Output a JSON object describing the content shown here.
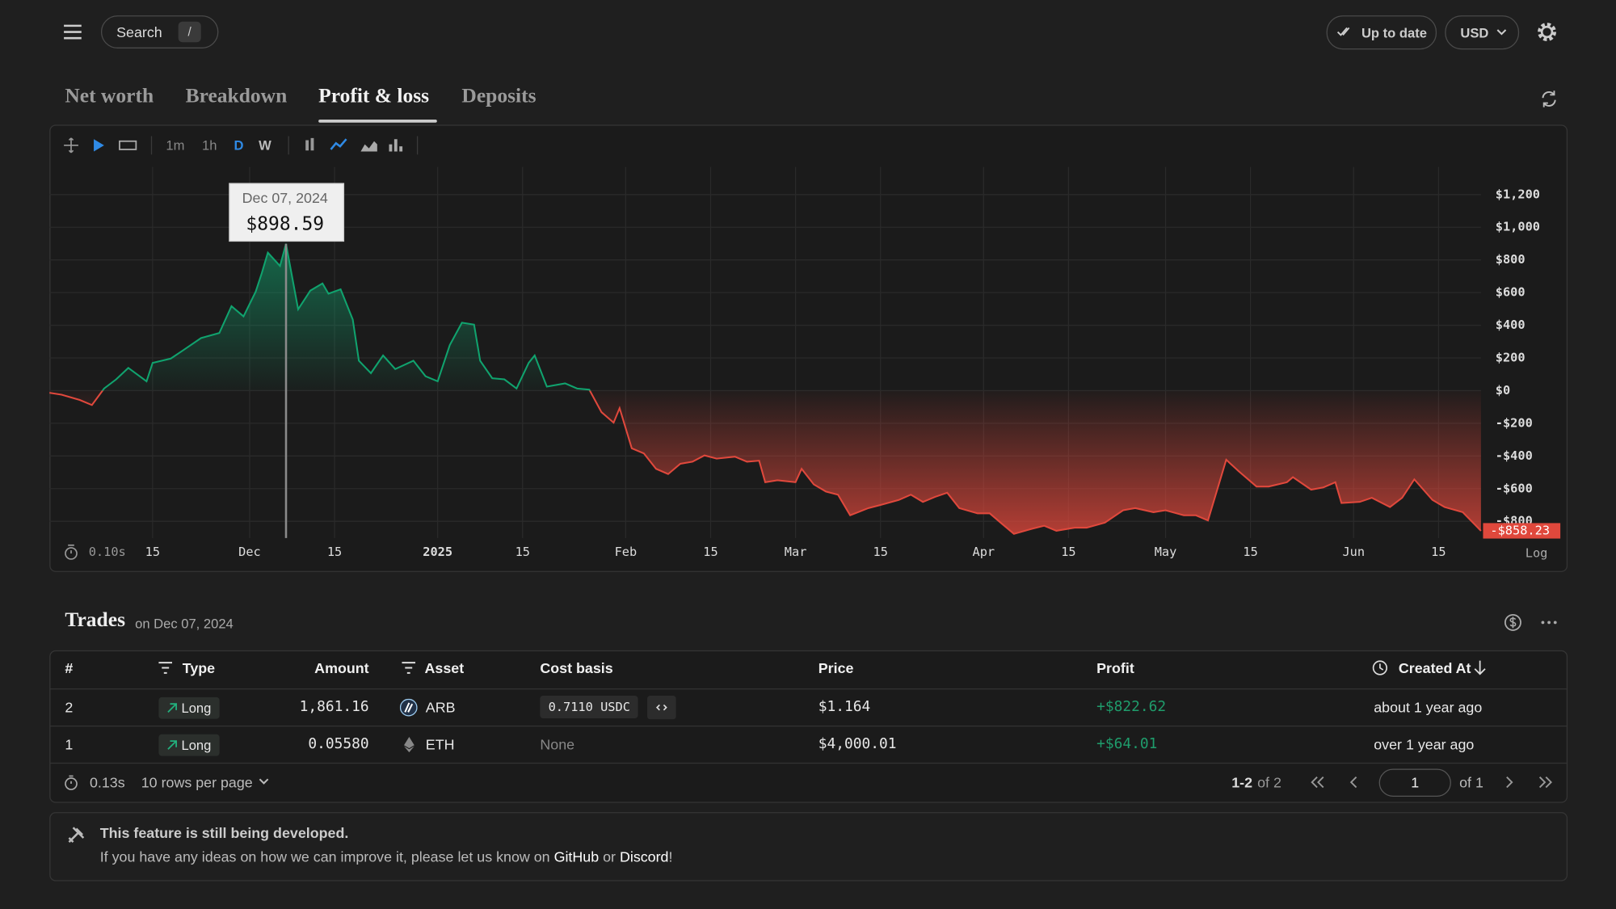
{
  "header": {
    "search": "Search",
    "shortcut": "/",
    "status": "Up to date",
    "currency": "USD"
  },
  "tabs": [
    "Net worth",
    "Breakdown",
    "Profit & loss",
    "Deposits"
  ],
  "toolbar": {
    "intervals": [
      "1m",
      "1h",
      "D",
      "W"
    ]
  },
  "chart_data": {
    "type": "area",
    "x": [
      "2024-10-29",
      "2024-10-31",
      "2024-11-03",
      "2024-11-05",
      "2024-11-07",
      "2024-11-09",
      "2024-11-11",
      "2024-11-14",
      "2024-11-15",
      "2024-11-18",
      "2024-11-20",
      "2024-11-23",
      "2024-11-26",
      "2024-11-28",
      "2024-11-30",
      "2024-12-02",
      "2024-12-03",
      "2024-12-04",
      "2024-12-06",
      "2024-12-07",
      "2024-12-09",
      "2024-12-11",
      "2024-12-13",
      "2024-12-14",
      "2024-12-16",
      "2024-12-18",
      "2024-12-19",
      "2024-12-21",
      "2024-12-23",
      "2024-12-25",
      "2024-12-28",
      "2024-12-30",
      "2025-01-01",
      "2025-01-03",
      "2025-01-05",
      "2025-01-07",
      "2025-01-08",
      "2025-01-10",
      "2025-01-12",
      "2025-01-14",
      "2025-01-16",
      "2025-01-17",
      "2025-01-19",
      "2025-01-22",
      "2025-01-24",
      "2025-01-26",
      "2025-01-28",
      "2025-01-30",
      "2025-01-31",
      "2025-02-02",
      "2025-02-04",
      "2025-02-06",
      "2025-02-08",
      "2025-02-10",
      "2025-02-12",
      "2025-02-14",
      "2025-02-16",
      "2025-02-19",
      "2025-02-21",
      "2025-02-23",
      "2025-02-24",
      "2025-02-26",
      "2025-03-01",
      "2025-03-02",
      "2025-03-04",
      "2025-03-06",
      "2025-03-08",
      "2025-03-10",
      "2025-03-13",
      "2025-03-15",
      "2025-03-18",
      "2025-03-20",
      "2025-03-22",
      "2025-03-24",
      "2025-03-26",
      "2025-03-28",
      "2025-03-31",
      "2025-04-02",
      "2025-04-04",
      "2025-04-06",
      "2025-04-09",
      "2025-04-11",
      "2025-04-13",
      "2025-04-16",
      "2025-04-18",
      "2025-04-21",
      "2025-04-24",
      "2025-04-26",
      "2025-04-29",
      "2025-05-01",
      "2025-05-04",
      "2025-05-06",
      "2025-05-08",
      "2025-05-11",
      "2025-05-13",
      "2025-05-16",
      "2025-05-18",
      "2025-05-21",
      "2025-05-22",
      "2025-05-25",
      "2025-05-27",
      "2025-05-29",
      "2025-05-30",
      "2025-06-02",
      "2025-06-04",
      "2025-06-07",
      "2025-06-09",
      "2025-06-11",
      "2025-06-14",
      "2025-06-16",
      "2025-06-19",
      "2025-06-22"
    ],
    "values": [
      -13,
      -25,
      -57,
      -88,
      13,
      69,
      139,
      57,
      170,
      196,
      246,
      322,
      353,
      517,
      454,
      606,
      719,
      845,
      763,
      898.59,
      498,
      612,
      656,
      593,
      620,
      435,
      183,
      107,
      215,
      132,
      183,
      88,
      57,
      278,
      416,
      404,
      183,
      76,
      69,
      13,
      170,
      215,
      25,
      44,
      13,
      6,
      -132,
      -196,
      -107,
      -353,
      -385,
      -479,
      -511,
      -448,
      -435,
      -397,
      -416,
      -404,
      -435,
      -429,
      -561,
      -549,
      -561,
      -479,
      -574,
      -618,
      -637,
      -763,
      -719,
      -700,
      -669,
      -637,
      -681,
      -650,
      -625,
      -719,
      -751,
      -751,
      -814,
      -877,
      -845,
      -827,
      -858,
      -839,
      -839,
      -808,
      -732,
      -719,
      -744,
      -732,
      -763,
      -763,
      -795,
      -423,
      -492,
      -587,
      -587,
      -561,
      -530,
      -606,
      -593,
      -561,
      -688,
      -681,
      -656,
      -713,
      -656,
      -543,
      -669,
      -713,
      -744,
      -858.23
    ],
    "color_positive": "#10a36e",
    "color_negative": "#e0483c",
    "xlim": [
      "2024-10-29",
      "2025-06-22"
    ],
    "xticks": [
      {
        "value": "2024-11-15",
        "label": "15"
      },
      {
        "value": "2024-12-01",
        "label": "Dec"
      },
      {
        "value": "2024-12-15",
        "label": "15"
      },
      {
        "value": "2025-01-01",
        "label": "2025"
      },
      {
        "value": "2025-01-15",
        "label": "15"
      },
      {
        "value": "2025-02-01",
        "label": "Feb"
      },
      {
        "value": "2025-02-15",
        "label": "15"
      },
      {
        "value": "2025-03-01",
        "label": "Mar"
      },
      {
        "value": "2025-03-15",
        "label": "15"
      },
      {
        "value": "2025-04-01",
        "label": "Apr"
      },
      {
        "value": "2025-04-15",
        "label": "15"
      },
      {
        "value": "2025-05-01",
        "label": "May"
      },
      {
        "value": "2025-05-15",
        "label": "15"
      },
      {
        "value": "2025-06-01",
        "label": "Jun"
      },
      {
        "value": "2025-06-15",
        "label": "15"
      }
    ],
    "ylim": [
      -902,
      1369
    ],
    "yticks": [
      {
        "value": 1200,
        "label": "$1,200"
      },
      {
        "value": 1000,
        "label": "$1,000"
      },
      {
        "value": 800,
        "label": "$800"
      },
      {
        "value": 600,
        "label": "$600"
      },
      {
        "value": 400,
        "label": "$400"
      },
      {
        "value": 200,
        "label": "$200"
      },
      {
        "value": 0,
        "label": "$0"
      },
      {
        "value": -200,
        "label": "-$200"
      },
      {
        "value": -400,
        "label": "-$400"
      },
      {
        "value": -600,
        "label": "-$600"
      },
      {
        "value": -800,
        "label": "-$800"
      }
    ],
    "grid": true,
    "crosshair": {
      "x": "2024-12-07",
      "label": "Dec 07, 2024",
      "value": 898.59,
      "value_label": "$898.59"
    },
    "last_value_label": "-$858.23",
    "render_time": "0.10s",
    "scale_button": "Log"
  },
  "trades": {
    "title": "Trades",
    "subtitle": "on Dec 07, 2024"
  },
  "table": {
    "columns": [
      "#",
      "Type",
      "Amount",
      "Asset",
      "Cost basis",
      "Price",
      "Profit",
      "Created At"
    ],
    "rows": [
      [
        "2",
        "Long",
        "1,861.16",
        "ARB",
        "0.7110 USDC",
        "$1.164",
        "+$822.62",
        "about 1 year ago"
      ],
      [
        "1",
        "Long",
        "0.05580",
        "ETH",
        "None",
        "$4,000.01",
        "+$64.01",
        "over 1 year ago"
      ]
    ],
    "footer": {
      "time": "0.13s",
      "rows_per_page": "10 rows per page",
      "range": "1-2",
      "range_total": "of 2",
      "page": "1",
      "page_total": "of 1"
    }
  },
  "notice": {
    "title": "This feature is still being developed.",
    "text": "If you have any ideas on how we can improve it, please let us know on ",
    "link1": "GitHub",
    "joiner": " or ",
    "link2": "Discord",
    "end": "!"
  }
}
